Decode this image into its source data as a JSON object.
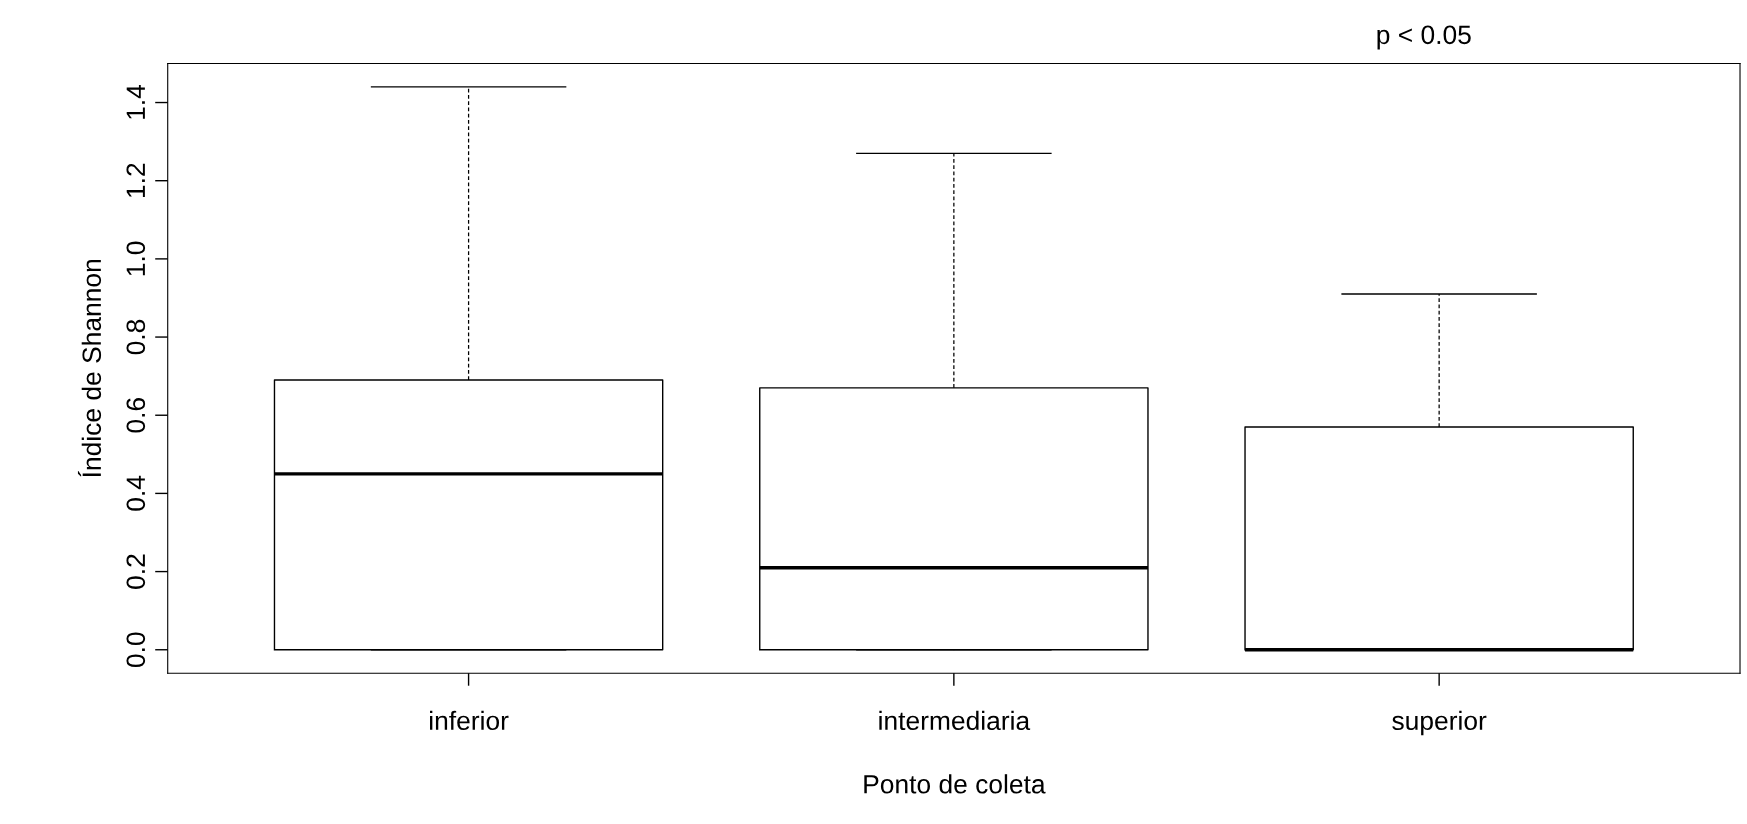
{
  "chart_data": {
    "type": "box",
    "xlabel": "Ponto de coleta",
    "ylabel": "Índice de Shannon",
    "annotations": [
      "p < 0.05"
    ],
    "categories": [
      "inferior",
      "intermediaria",
      "superior"
    ],
    "boxes": [
      {
        "low": 0,
        "q1": 0,
        "median": 0.45,
        "q3": 0.69,
        "high": 1.44
      },
      {
        "low": 0,
        "q1": 0,
        "median": 0.21,
        "q3": 0.67,
        "high": 1.27
      },
      {
        "low": 0,
        "q1": 0,
        "median": 0,
        "q3": 0.57,
        "high": 0.91
      }
    ],
    "ylim": [
      -0.06,
      1.5
    ],
    "yticks": [
      {
        "value": 0,
        "label": "0.0"
      },
      {
        "value": 0.2,
        "label": "0.2"
      },
      {
        "value": 0.4,
        "label": "0.4"
      },
      {
        "value": 0.6,
        "label": "0.6"
      },
      {
        "value": 0.8,
        "label": "0.8"
      },
      {
        "value": 1.0,
        "label": "1.0"
      },
      {
        "value": 1.2,
        "label": "1.2"
      },
      {
        "value": 1.4,
        "label": "1.4"
      }
    ],
    "grid": false,
    "legend": false
  }
}
